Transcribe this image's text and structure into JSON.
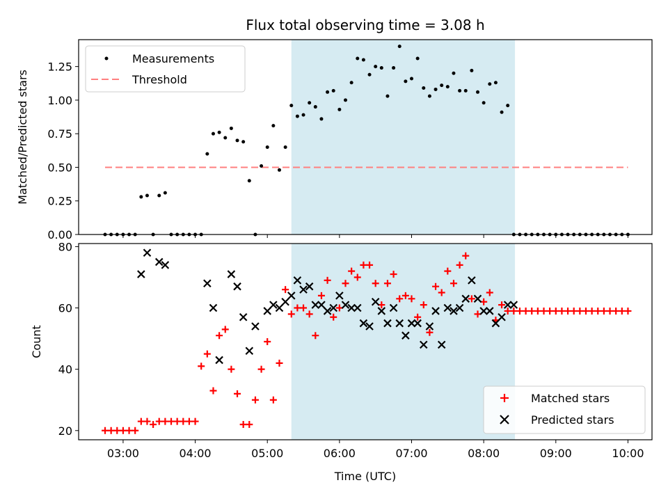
{
  "chart_data": [
    {
      "type": "scatter",
      "title": "Flux total observing time = 3.08 h",
      "xlabel": "",
      "ylabel": "Matched/Predicted stars",
      "xlim": [
        "02:23",
        "10:20"
      ],
      "ylim": [
        0,
        1.45
      ],
      "yticks": [
        0.0,
        0.25,
        0.5,
        0.75,
        1.0,
        1.25
      ],
      "ytick_labels": [
        "0.00",
        "0.25",
        "0.50",
        "0.75",
        "1.00",
        "1.25"
      ],
      "shaded_span": {
        "x_start": "05:20",
        "x_end": "08:26",
        "color": "#add8e6"
      },
      "legend": {
        "position": "upper-left",
        "entries": [
          "Measurements",
          "Threshold"
        ]
      },
      "series": [
        {
          "name": "Measurements",
          "marker": "dot",
          "color": "#000000",
          "x": [
            "02:45",
            "02:50",
            "02:55",
            "03:00",
            "03:05",
            "03:10",
            "03:15",
            "03:20",
            "03:25",
            "03:30",
            "03:35",
            "03:40",
            "03:45",
            "03:50",
            "03:55",
            "04:00",
            "04:05",
            "04:10",
            "04:15",
            "04:20",
            "04:25",
            "04:30",
            "04:35",
            "04:40",
            "04:45",
            "04:50",
            "04:55",
            "05:00",
            "05:05",
            "05:10",
            "05:15",
            "05:20",
            "05:25",
            "05:30",
            "05:35",
            "05:40",
            "05:45",
            "05:50",
            "05:55",
            "06:00",
            "06:05",
            "06:10",
            "06:15",
            "06:20",
            "06:25",
            "06:30",
            "06:35",
            "06:40",
            "06:45",
            "06:50",
            "06:55",
            "07:00",
            "07:05",
            "07:10",
            "07:15",
            "07:20",
            "07:25",
            "07:30",
            "07:35",
            "07:40",
            "07:45",
            "07:50",
            "07:55",
            "08:00",
            "08:05",
            "08:10",
            "08:15",
            "08:20",
            "08:25",
            "08:30",
            "08:35",
            "08:40",
            "08:45",
            "08:50",
            "08:55",
            "09:00",
            "09:05",
            "09:10",
            "09:15",
            "09:20",
            "09:25",
            "09:30",
            "09:35",
            "09:40",
            "09:45",
            "09:50",
            "09:55",
            "10:00"
          ],
          "y": [
            0,
            0,
            0,
            0,
            0,
            0,
            0.28,
            0.29,
            0,
            0.29,
            0.31,
            0,
            0,
            0,
            0,
            0,
            0,
            0.6,
            0.75,
            0.76,
            0.72,
            0.79,
            0.7,
            0.69,
            0.4,
            0,
            0.51,
            0.65,
            0.81,
            0.48,
            0.65,
            0.96,
            0.88,
            0.89,
            0.98,
            0.95,
            0.86,
            1.06,
            1.07,
            0.93,
            1.0,
            1.13,
            1.31,
            1.3,
            1.19,
            1.25,
            1.24,
            1.03,
            1.24,
            1.4,
            1.14,
            1.16,
            1.31,
            1.09,
            1.03,
            1.08,
            1.11,
            1.1,
            1.2,
            1.07,
            1.07,
            1.22,
            1.06,
            0.98,
            1.12,
            1.13,
            0.91,
            0.96,
            0,
            0,
            0,
            0,
            0,
            0,
            0,
            0,
            0,
            0,
            0,
            0,
            0,
            0,
            0,
            0,
            0,
            0,
            0,
            0
          ]
        },
        {
          "name": "Threshold",
          "line_style": "dashed",
          "color": "#ff7f7f",
          "x": [
            "02:45",
            "10:00"
          ],
          "y": [
            0.5,
            0.5
          ]
        }
      ]
    },
    {
      "type": "scatter",
      "title": "",
      "xlabel": "Time (UTC)",
      "ylabel": "Count",
      "xlim": [
        "02:23",
        "10:20"
      ],
      "ylim": [
        17,
        81
      ],
      "yticks": [
        20,
        40,
        60,
        80
      ],
      "xticks": [
        "03:00",
        "04:00",
        "05:00",
        "06:00",
        "07:00",
        "08:00",
        "09:00",
        "10:00"
      ],
      "shaded_span": {
        "x_start": "05:20",
        "x_end": "08:26",
        "color": "#add8e6"
      },
      "legend": {
        "position": "lower-right",
        "entries": [
          "Matched stars",
          "Predicted stars"
        ]
      },
      "series": [
        {
          "name": "Matched stars",
          "marker": "plus",
          "color": "#ff0000",
          "x": [
            "02:45",
            "02:50",
            "02:55",
            "03:00",
            "03:05",
            "03:10",
            "03:15",
            "03:20",
            "03:25",
            "03:30",
            "03:35",
            "03:40",
            "03:45",
            "03:50",
            "03:55",
            "04:00",
            "04:05",
            "04:10",
            "04:15",
            "04:20",
            "04:25",
            "04:30",
            "04:35",
            "04:40",
            "04:45",
            "04:50",
            "04:55",
            "05:00",
            "05:05",
            "05:10",
            "05:15",
            "05:20",
            "05:25",
            "05:30",
            "05:35",
            "05:40",
            "05:45",
            "05:50",
            "05:55",
            "06:00",
            "06:05",
            "06:10",
            "06:15",
            "06:20",
            "06:25",
            "06:30",
            "06:35",
            "06:40",
            "06:45",
            "06:50",
            "06:55",
            "07:00",
            "07:05",
            "07:10",
            "07:15",
            "07:20",
            "07:25",
            "07:30",
            "07:35",
            "07:40",
            "07:45",
            "07:50",
            "07:55",
            "08:00",
            "08:05",
            "08:10",
            "08:15",
            "08:20",
            "08:25",
            "08:30",
            "08:35",
            "08:40",
            "08:45",
            "08:50",
            "08:55",
            "09:00",
            "09:05",
            "09:10",
            "09:15",
            "09:20",
            "09:25",
            "09:30",
            "09:35",
            "09:40",
            "09:45",
            "09:50",
            "09:55",
            "10:00"
          ],
          "y": [
            20,
            20,
            20,
            20,
            20,
            20,
            23,
            23,
            22,
            23,
            23,
            23,
            23,
            23,
            23,
            23,
            41,
            45,
            33,
            51,
            53,
            40,
            32,
            22,
            22,
            30,
            40,
            49,
            30,
            42,
            66,
            58,
            60,
            60,
            58,
            51,
            64,
            69,
            57,
            60,
            68,
            72,
            70,
            74,
            74,
            68,
            61,
            68,
            71,
            63,
            64,
            63,
            57,
            61,
            52,
            67,
            65,
            72,
            68,
            74,
            77,
            63,
            58,
            62,
            65,
            56,
            61,
            59,
            59,
            59,
            59,
            59,
            59,
            59,
            59,
            59,
            59,
            59,
            59,
            59,
            59,
            59,
            59,
            59,
            59,
            59,
            59,
            59
          ]
        },
        {
          "name": "Predicted stars",
          "marker": "x",
          "color": "#000000",
          "x": [
            "03:15",
            "03:20",
            "03:30",
            "03:35",
            "04:10",
            "04:15",
            "04:20",
            "04:30",
            "04:35",
            "04:40",
            "04:45",
            "04:50",
            "05:00",
            "05:05",
            "05:10",
            "05:15",
            "05:20",
            "05:25",
            "05:30",
            "05:35",
            "05:40",
            "05:45",
            "05:50",
            "05:55",
            "06:00",
            "06:05",
            "06:10",
            "06:15",
            "06:20",
            "06:25",
            "06:30",
            "06:35",
            "06:40",
            "06:45",
            "06:50",
            "06:55",
            "07:00",
            "07:05",
            "07:10",
            "07:15",
            "07:20",
            "07:25",
            "07:30",
            "07:35",
            "07:40",
            "07:45",
            "07:50",
            "07:55",
            "08:00",
            "08:05",
            "08:10",
            "08:15",
            "08:20",
            "08:25"
          ],
          "y": [
            71,
            78,
            75,
            74,
            68,
            60,
            43,
            71,
            67,
            57,
            46,
            54,
            59,
            61,
            60,
            62,
            64,
            69,
            66,
            67,
            61,
            61,
            59,
            60,
            64,
            61,
            60,
            60,
            55,
            54,
            62,
            59,
            55,
            60,
            55,
            51,
            55,
            55,
            48,
            54,
            59,
            48,
            60,
            59,
            60,
            63,
            69,
            63,
            59,
            59,
            55,
            57,
            61,
            61
          ]
        }
      ]
    }
  ]
}
